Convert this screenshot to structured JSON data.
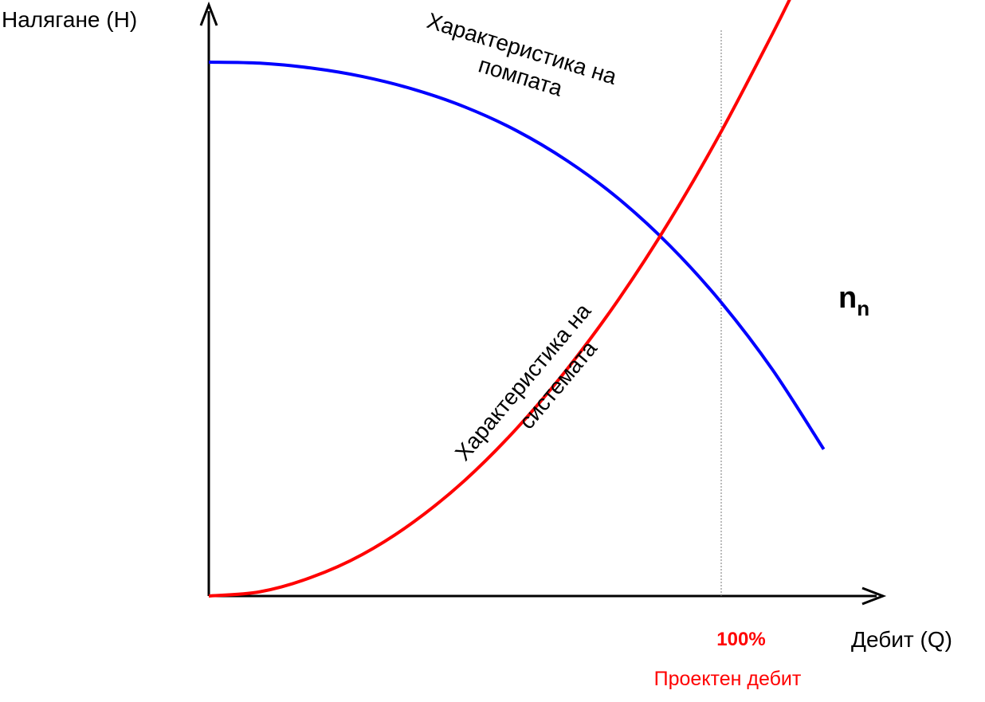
{
  "chart_data": {
    "type": "line",
    "title": "",
    "ylabel": "Налягане (H)",
    "xlabel": "Дебит (Q)",
    "xlim": [
      0,
      130
    ],
    "ylim": [
      0,
      125
    ],
    "grid": false,
    "series": [
      {
        "label": "Характеристика на помпата",
        "label_line1": "Характеристика на",
        "label_line2": "помпата",
        "color": "#0000ff",
        "x": [
          0,
          10,
          20,
          30,
          40,
          50,
          60,
          70,
          80,
          90,
          100,
          110,
          120
        ],
        "y": [
          100,
          99.8,
          98.9,
          97.3,
          94.9,
          91.6,
          87.2,
          81.5,
          74.4,
          65.6,
          55,
          42.4,
          27.5
        ]
      },
      {
        "label": "Характеристика на системата",
        "label_line1": "Характеристика на",
        "label_line2": "системата",
        "color": "#ff0000",
        "x": [
          0,
          10,
          20,
          30,
          40,
          50,
          60,
          70,
          80,
          90,
          100,
          110,
          114
        ],
        "y": [
          0,
          0.8,
          3.5,
          7.8,
          13.9,
          21.7,
          31.3,
          42.6,
          55.6,
          70.4,
          87,
          105.3,
          113
        ]
      }
    ],
    "reference_line": {
      "x": 100,
      "style": "dotted",
      "color": "#777777"
    },
    "annotations": {
      "speed_label": "n",
      "speed_subscript": "n",
      "design_percent": "100%",
      "design_label": "Проектен дебит",
      "design_color": "#ff0000"
    }
  }
}
